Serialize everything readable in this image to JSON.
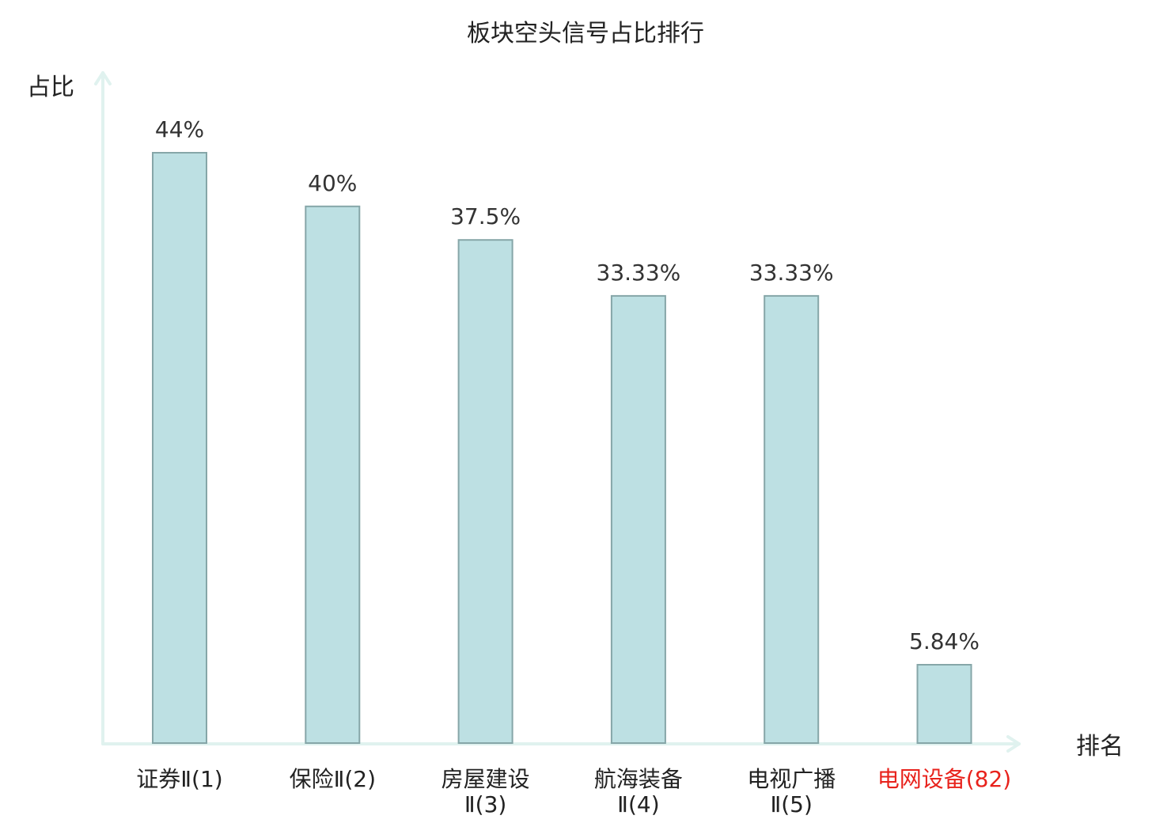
{
  "chart_data": {
    "type": "bar",
    "title": "板块空头信号占比排行",
    "ylabel": "占比",
    "xlabel": "排名",
    "categories": [
      [
        "证券Ⅱ(1)"
      ],
      [
        "保险Ⅱ(2)"
      ],
      [
        "房屋建设",
        "Ⅱ(3)"
      ],
      [
        "航海装备",
        "Ⅱ(4)"
      ],
      [
        "电视广播",
        "Ⅱ(5)"
      ],
      [
        "电网设备(82)"
      ]
    ],
    "values": [
      44,
      40,
      37.5,
      33.33,
      33.33,
      5.84
    ],
    "value_labels": [
      "44%",
      "40%",
      "37.5%",
      "33.33%",
      "33.33%",
      "5.84%"
    ],
    "highlight_index": 5,
    "ylim": [
      0,
      44
    ],
    "grid": false,
    "colors": {
      "bar_fill": "#bde0e3",
      "bar_stroke": "#86a6a8",
      "axis": "#e0f2ef",
      "text": "#222222",
      "highlight_text": "#e8221c"
    }
  }
}
